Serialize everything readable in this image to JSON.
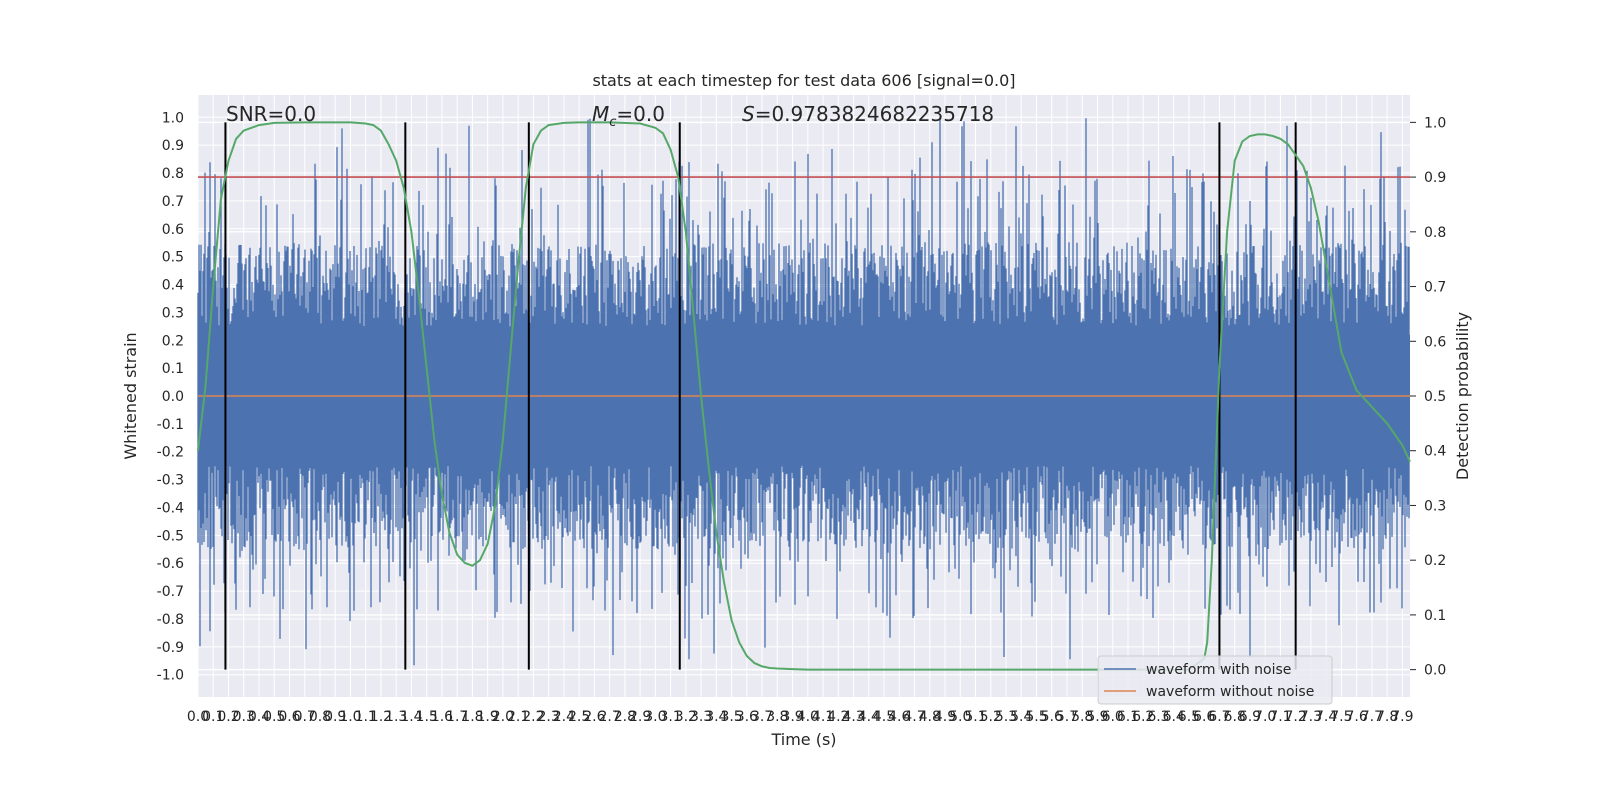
{
  "chart_data": {
    "type": "line",
    "title": "stats at each timestep for test data 606 [signal=0.0]",
    "xlabel": "Time (s)",
    "ylabel": "Whitened strain",
    "y2label": "Detection probability",
    "xlim": [
      0.0,
      7.95
    ],
    "ylim": [
      -1.08,
      1.08
    ],
    "y2lim": [
      -0.05,
      1.05
    ],
    "x_ticks": [
      0.0,
      0.1,
      0.2,
      0.3,
      0.4,
      0.5,
      0.6,
      0.7,
      0.8,
      0.9,
      1.0,
      1.1,
      1.2,
      1.3,
      1.4,
      1.5,
      1.6,
      1.7,
      1.8,
      1.9,
      2.0,
      2.1,
      2.2,
      2.3,
      2.4,
      2.5,
      2.6,
      2.7,
      2.8,
      2.9,
      3.0,
      3.1,
      3.2,
      3.3,
      3.4,
      3.5,
      3.6,
      3.7,
      3.8,
      3.9,
      4.0,
      4.1,
      4.2,
      4.3,
      4.4,
      4.5,
      4.6,
      4.7,
      4.8,
      4.9,
      5.0,
      5.1,
      5.2,
      5.3,
      5.4,
      5.5,
      5.6,
      5.7,
      5.8,
      5.9,
      6.0,
      6.1,
      6.2,
      6.3,
      6.4,
      6.5,
      6.6,
      6.7,
      6.8,
      6.9,
      7.0,
      7.1,
      7.2,
      7.3,
      7.4,
      7.5,
      7.6,
      7.7,
      7.8,
      7.9
    ],
    "y_ticks": [
      -1.0,
      -0.9,
      -0.8,
      -0.7,
      -0.6,
      -0.5,
      -0.4,
      -0.3,
      -0.2,
      -0.1,
      0.0,
      0.1,
      0.2,
      0.3,
      0.4,
      0.5,
      0.6,
      0.7,
      0.8,
      0.9,
      1.0
    ],
    "y2_ticks": [
      0.0,
      0.1,
      0.2,
      0.3,
      0.4,
      0.5,
      0.6,
      0.7,
      0.8,
      0.9,
      1.0
    ],
    "annotations": {
      "snr": "SNR=0.0",
      "mc_symbol": "M",
      "mc_sub": "c",
      "mc_value": "=0.0",
      "s_symbol": "S",
      "s_value": "=0.9783824682235718"
    },
    "threshold_y2": 0.9,
    "vertical_lines_x": [
      0.18,
      1.36,
      2.17,
      3.16,
      6.7,
      7.2
    ],
    "series": [
      {
        "name": "waveform with noise",
        "color": "#4c72b0",
        "description_values": "dense noise spanning roughly -0.98 to 1.0 across the full time range"
      },
      {
        "name": "waveform without noise",
        "color": "#dd8452",
        "value": 0.0
      }
    ],
    "detection_probability": {
      "color": "#55a868",
      "x": [
        0.0,
        0.05,
        0.1,
        0.15,
        0.2,
        0.25,
        0.3,
        0.4,
        0.5,
        0.7,
        0.9,
        1.0,
        1.1,
        1.15,
        1.2,
        1.25,
        1.3,
        1.35,
        1.4,
        1.45,
        1.5,
        1.55,
        1.6,
        1.65,
        1.7,
        1.75,
        1.8,
        1.85,
        1.9,
        1.95,
        2.0,
        2.05,
        2.1,
        2.15,
        2.2,
        2.25,
        2.3,
        2.4,
        2.5,
        2.7,
        2.9,
        3.0,
        3.05,
        3.1,
        3.15,
        3.2,
        3.25,
        3.3,
        3.35,
        3.4,
        3.45,
        3.5,
        3.55,
        3.6,
        3.65,
        3.7,
        3.75,
        3.8,
        3.9,
        4.0,
        4.5,
        5.0,
        5.5,
        6.0,
        6.3,
        6.5,
        6.6,
        6.62,
        6.65,
        6.7,
        6.75,
        6.8,
        6.85,
        6.9,
        6.95,
        7.0,
        7.05,
        7.1,
        7.15,
        7.2,
        7.25,
        7.3,
        7.35,
        7.4,
        7.45,
        7.5,
        7.6,
        7.7,
        7.8,
        7.9,
        7.95
      ],
      "y": [
        0.4,
        0.52,
        0.7,
        0.86,
        0.93,
        0.97,
        0.985,
        0.995,
        0.999,
        1.0,
        1.0,
        1.0,
        0.998,
        0.995,
        0.985,
        0.96,
        0.93,
        0.88,
        0.8,
        0.68,
        0.55,
        0.42,
        0.32,
        0.25,
        0.21,
        0.195,
        0.19,
        0.2,
        0.23,
        0.3,
        0.42,
        0.58,
        0.74,
        0.88,
        0.96,
        0.985,
        0.995,
        0.999,
        1.0,
        1.0,
        0.998,
        0.99,
        0.98,
        0.95,
        0.9,
        0.8,
        0.65,
        0.5,
        0.37,
        0.25,
        0.16,
        0.09,
        0.05,
        0.025,
        0.012,
        0.006,
        0.003,
        0.002,
        0.001,
        0.0,
        0.0,
        0.0,
        0.0,
        0.0,
        0.0,
        0.0,
        0.02,
        0.05,
        0.2,
        0.55,
        0.8,
        0.93,
        0.965,
        0.975,
        0.978,
        0.978,
        0.975,
        0.97,
        0.96,
        0.94,
        0.92,
        0.88,
        0.82,
        0.74,
        0.66,
        0.58,
        0.51,
        0.48,
        0.45,
        0.41,
        0.38
      ]
    }
  }
}
